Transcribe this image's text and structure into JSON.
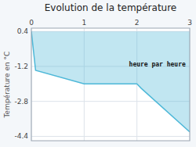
{
  "chart_data": {
    "type": "area",
    "title": "Evolution de la température",
    "y_label": "Température en °C",
    "annotations": [
      {
        "text": "heure par heure",
        "x": 1.85,
        "y": -1.1
      }
    ],
    "x": [
      0,
      0.08,
      1.0,
      2.0,
      2.08,
      3.0
    ],
    "values": [
      0.4,
      -1.38,
      -2.0,
      -2.0,
      -2.2,
      -4.2
    ],
    "fill_top": 0.4,
    "color": "#4eb8d8",
    "xlim": [
      0,
      3
    ],
    "xticks": [
      0,
      1,
      2,
      3
    ],
    "ylim": [
      -4.6,
      0.55
    ],
    "yticks": [
      0.4,
      -1.2,
      -2.8,
      -4.4
    ],
    "grid": true
  }
}
